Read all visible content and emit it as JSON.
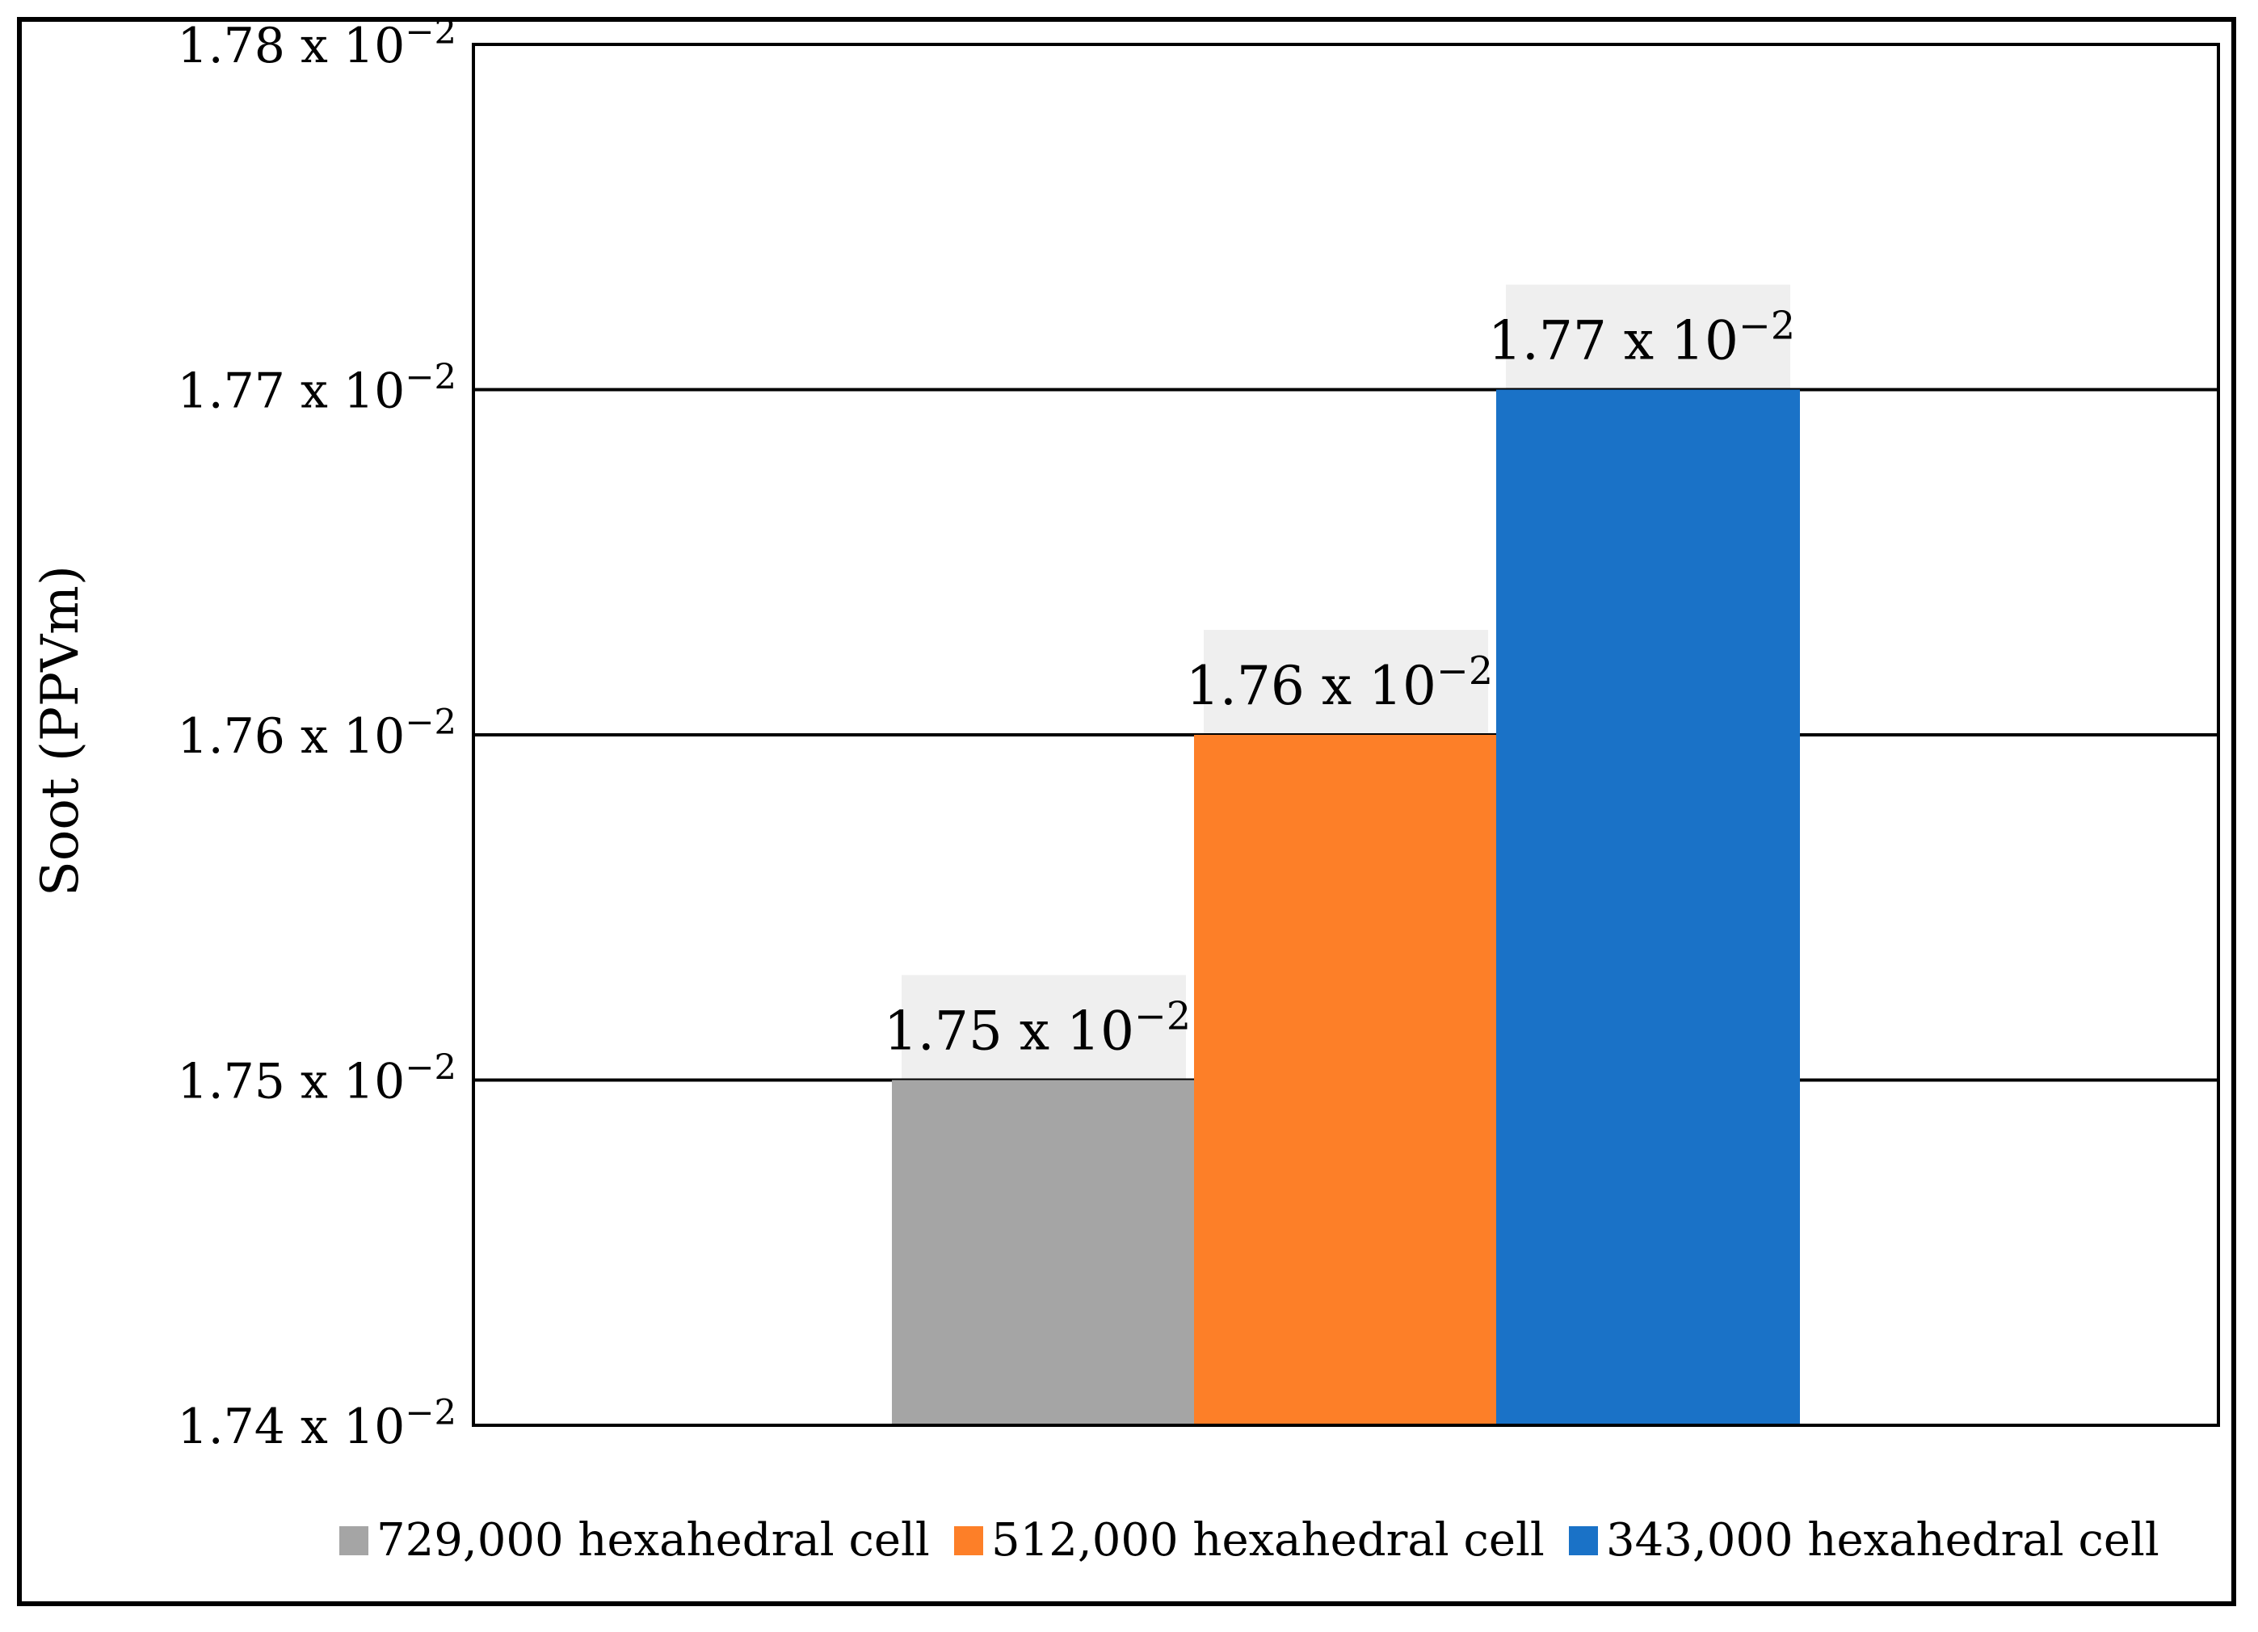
{
  "chart_data": {
    "type": "bar",
    "title": "",
    "xlabel": "",
    "ylabel": "Soot (PPVm)",
    "ylim": [
      0.0174,
      0.0178
    ],
    "grid": true,
    "legend_position": "bottom",
    "yticks": [
      {
        "value": 0.0174,
        "mantissa": "1.74 x 10",
        "exponent": "−2"
      },
      {
        "value": 0.0175,
        "mantissa": "1.75 x 10",
        "exponent": "−2"
      },
      {
        "value": 0.0176,
        "mantissa": "1.76 x 10",
        "exponent": "−2"
      },
      {
        "value": 0.0177,
        "mantissa": "1.77 x 10",
        "exponent": "−2"
      },
      {
        "value": 0.0178,
        "mantissa": "1.78 x 10",
        "exponent": "−2"
      }
    ],
    "series": [
      {
        "name": "729,000 hexahedral cell",
        "value": 0.0175,
        "label_mantissa": "1.75 x 10",
        "label_exponent": "−2",
        "color": "#a5a5a5"
      },
      {
        "name": "512,000 hexahedral cell",
        "value": 0.0176,
        "label_mantissa": "1.76 x 10",
        "label_exponent": "−2",
        "color": "#fd7f28"
      },
      {
        "name": "343,000 hexahedral cell",
        "value": 0.0177,
        "label_mantissa": "1.77 x 10",
        "label_exponent": "−2",
        "color": "#1a72c7"
      }
    ]
  }
}
